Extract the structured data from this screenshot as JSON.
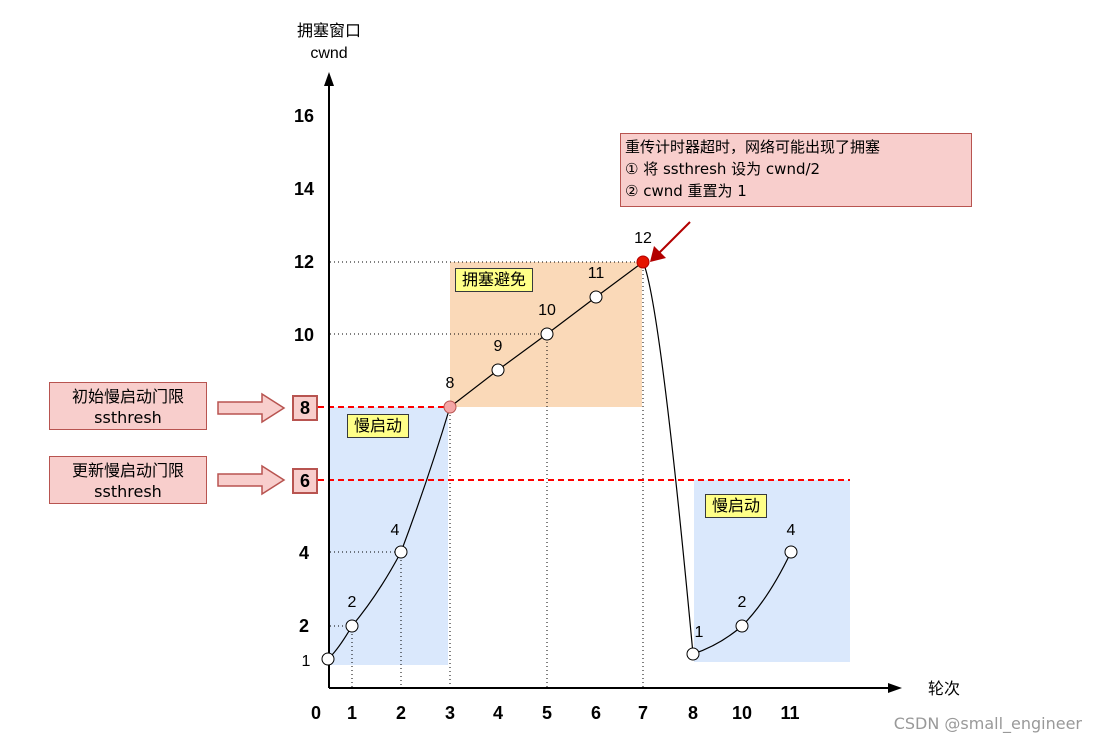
{
  "y_axis": {
    "title_cn": "拥塞窗口",
    "title_en": "cwnd",
    "ticks": [
      "16",
      "14",
      "12",
      "10",
      "8",
      "6",
      "4",
      "2"
    ]
  },
  "x_axis": {
    "title": "轮次",
    "ticks": [
      "0",
      "1",
      "2",
      "3",
      "4",
      "5",
      "6",
      "7",
      "8",
      "10",
      "11"
    ]
  },
  "regions": {
    "slow_start_1": "慢启动",
    "congestion_avoidance": "拥塞避免",
    "slow_start_2": "慢启动"
  },
  "callout": {
    "line1": "重传计时器超时，网络可能出现了拥塞",
    "line2": "① 将 ssthresh 设为 cwnd/2",
    "line3": "② cwnd 重置为 1"
  },
  "side_labels": {
    "initial": {
      "line1": "初始慢启动门限",
      "line2": "ssthresh",
      "value": "8"
    },
    "updated": {
      "line1": "更新慢启动门限",
      "line2": "ssthresh",
      "value": "6"
    }
  },
  "watermark": "CSDN @small_engineer",
  "chart_data": {
    "type": "line",
    "xlabel": "轮次",
    "ylabel": "拥塞窗口 cwnd",
    "series": [
      {
        "x": [
          0,
          1,
          2,
          3,
          4,
          5,
          6,
          7
        ],
        "values": [
          1,
          2,
          4,
          8,
          9,
          10,
          11,
          12
        ],
        "point_labels": [
          "1",
          "2",
          "4",
          "8",
          "9",
          "10",
          "11",
          "12"
        ]
      },
      {
        "x": [
          8,
          9,
          10
        ],
        "values": [
          1,
          2,
          4
        ],
        "point_labels": [
          "1",
          "2",
          "4"
        ]
      }
    ],
    "thresholds": [
      8,
      6
    ],
    "colors": {
      "slow_start": "#dae8fc",
      "avoidance": "#fad9b8",
      "threshold_line": "#ff0000",
      "timeout_point": "#e51400"
    }
  }
}
